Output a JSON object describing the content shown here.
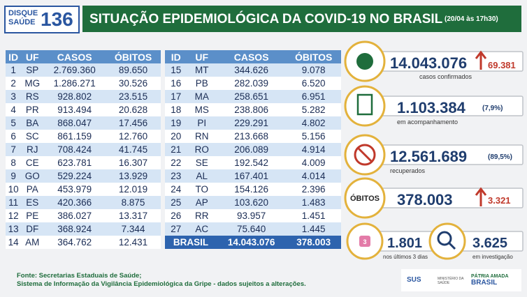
{
  "header": {
    "logo_line1": "DISQUE",
    "logo_line2": "SAÚDE",
    "logo_number": "136",
    "title": "SITUAÇÃO EPIDEMIOLÓGICA DA COVID-19 NO BRASIL",
    "timestamp": "(20/04 às 17h30)"
  },
  "table_left": {
    "columns": [
      "ID",
      "UF",
      "CASOS",
      "ÓBITOS"
    ],
    "rows": [
      [
        "1",
        "SP",
        "2.769.360",
        "89.650"
      ],
      [
        "2",
        "MG",
        "1.286.271",
        "30.526"
      ],
      [
        "3",
        "RS",
        "928.802",
        "23.515"
      ],
      [
        "4",
        "PR",
        "913.494",
        "20.628"
      ],
      [
        "5",
        "BA",
        "868.047",
        "17.456"
      ],
      [
        "6",
        "SC",
        "861.159",
        "12.760"
      ],
      [
        "7",
        "RJ",
        "708.424",
        "41.745"
      ],
      [
        "8",
        "CE",
        "623.781",
        "16.307"
      ],
      [
        "9",
        "GO",
        "529.224",
        "13.929"
      ],
      [
        "10",
        "PA",
        "453.979",
        "12.019"
      ],
      [
        "11",
        "ES",
        "420.366",
        "8.875"
      ],
      [
        "12",
        "PE",
        "386.027",
        "13.317"
      ],
      [
        "13",
        "DF",
        "368.924",
        "7.344"
      ],
      [
        "14",
        "AM",
        "364.762",
        "12.431"
      ]
    ]
  },
  "table_right": {
    "columns": [
      "ID",
      "UF",
      "CASOS",
      "ÓBITOS"
    ],
    "rows": [
      [
        "15",
        "MT",
        "344.626",
        "9.078"
      ],
      [
        "16",
        "PB",
        "282.039",
        "6.520"
      ],
      [
        "17",
        "MA",
        "258.651",
        "6.951"
      ],
      [
        "18",
        "MS",
        "238.806",
        "5.282"
      ],
      [
        "19",
        "PI",
        "229.291",
        "4.802"
      ],
      [
        "20",
        "RN",
        "213.668",
        "5.156"
      ],
      [
        "21",
        "RO",
        "206.089",
        "4.914"
      ],
      [
        "22",
        "SE",
        "192.542",
        "4.009"
      ],
      [
        "23",
        "AL",
        "167.401",
        "4.014"
      ],
      [
        "24",
        "TO",
        "154.126",
        "2.396"
      ],
      [
        "25",
        "AP",
        "103.620",
        "1.483"
      ],
      [
        "26",
        "RR",
        "93.957",
        "1.451"
      ],
      [
        "27",
        "AC",
        "75.640",
        "1.445"
      ]
    ],
    "total": [
      "BRASIL",
      "14.043.076",
      "378.003"
    ]
  },
  "stats": {
    "confirmed": {
      "value": "14.043.076",
      "change": "69.381",
      "label": "casos confirmados"
    },
    "monitoring": {
      "value": "1.103.384",
      "percent": "(7,9%)",
      "label": "em acompanhamento"
    },
    "recovered": {
      "value": "12.561.689",
      "percent": "(89,5%)",
      "label": "recuperados"
    },
    "deaths": {
      "icon_label": "ÓBITOS",
      "value": "378.003",
      "change": "3.321"
    },
    "last_days": {
      "icon_label": "3",
      "value": "1.801",
      "label": "nos últimos 3 dias"
    },
    "investigation": {
      "value": "3.625",
      "label": "em investigação"
    }
  },
  "footer": {
    "source": "Fonte: Secretarias Estaduais de Saúde;",
    "system": "Sistema de Informação da Vigilância Epidemiológica da Gripe - dados sujeitos a alterações.",
    "logo_sus": "SUS",
    "logo_ministry": "MINISTÉRIO DA SAÚDE",
    "logo_gov_line1": "PÁTRIA AMADA",
    "logo_gov_line2": "BRASIL"
  }
}
